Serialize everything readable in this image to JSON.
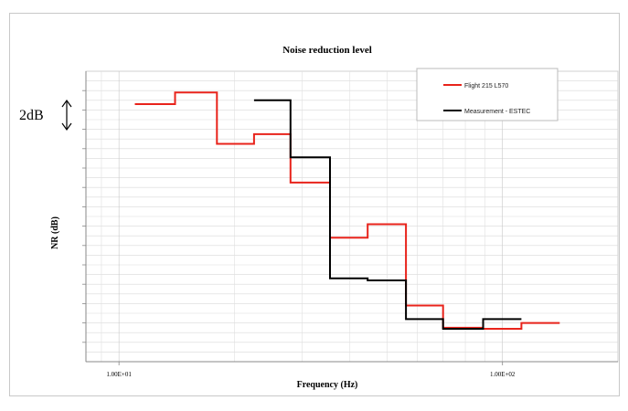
{
  "chart_data": {
    "type": "line",
    "title": "Noise reduction level",
    "xlabel": "Frequency (Hz)",
    "ylabel": "NR (dB)",
    "x_scale": "log",
    "xlim": [
      8.2,
      200
    ],
    "ylim": [
      0,
      30
    ],
    "x_tick_labels": [
      {
        "value": 10,
        "label": "1.00E+01"
      },
      {
        "value": 100,
        "label": "1.00E+02"
      }
    ],
    "grid": true,
    "legend_position": "top-right",
    "annotation": {
      "label": "2dB",
      "dB_span": 2
    },
    "series": [
      {
        "name": "Flight 215 L570",
        "color": "#e8231b",
        "x": [
          11,
          14,
          14,
          18,
          18,
          22.5,
          22.5,
          28,
          28,
          35.5,
          35.5,
          44.5,
          44.5,
          56,
          56,
          70,
          70,
          89,
          89,
          112,
          112,
          141
        ],
        "y": [
          26.6,
          26.6,
          27.8,
          27.8,
          22.5,
          22.5,
          23.5,
          23.5,
          18.5,
          18.5,
          12.8,
          12.8,
          14.2,
          14.2,
          5.8,
          5.8,
          3.5,
          3.5,
          3.4,
          3.4,
          4.0,
          4.0
        ]
      },
      {
        "name": "Measurement - ESTEC",
        "color": "#000000",
        "x": [
          22.5,
          28,
          28,
          35.5,
          35.5,
          44.5,
          44.5,
          56,
          56,
          70,
          70,
          89,
          89,
          112
        ],
        "y": [
          27.0,
          27.0,
          21.1,
          21.1,
          8.6,
          8.6,
          8.4,
          8.4,
          4.4,
          4.4,
          3.4,
          3.4,
          4.4,
          4.4
        ]
      }
    ]
  }
}
